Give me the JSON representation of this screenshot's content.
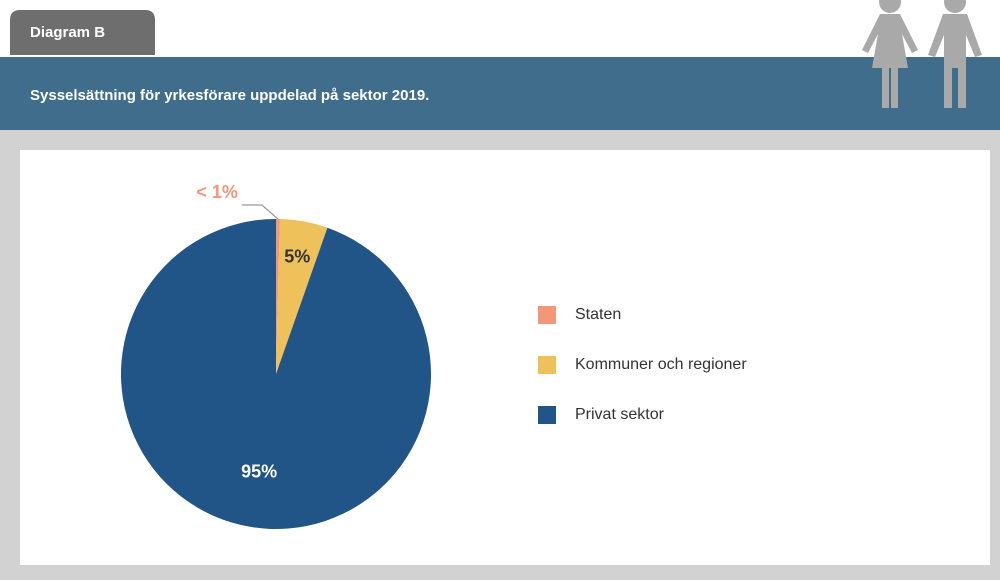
{
  "tab": "Diagram B",
  "chart_data": {
    "type": "pie",
    "title": "Sysselsättning för yrkesförare uppdelad på sektor 2019.",
    "categories": [
      "Staten",
      "Kommuner och regioner",
      "Privat sektor"
    ],
    "values": [
      0.4,
      5,
      95
    ],
    "value_labels": [
      "< 1%",
      "5%",
      "95%"
    ],
    "colors": [
      "#f4967a",
      "#efc15a",
      "#215487"
    ],
    "legend": "right"
  }
}
